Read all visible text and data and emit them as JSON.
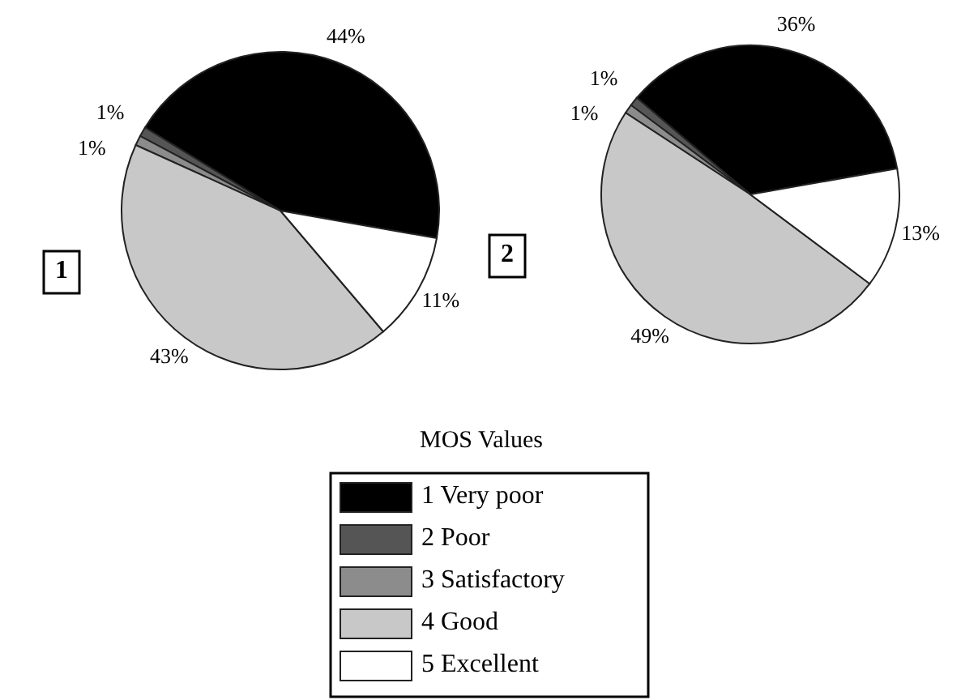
{
  "chart_data": [
    {
      "type": "pie",
      "title": "1",
      "categories": [
        "1 Very poor",
        "2 Poor",
        "3 Satisfactory",
        "4 Good",
        "5 Excellent"
      ],
      "values": [
        44,
        1,
        1,
        43,
        11
      ],
      "value_labels": [
        "44%",
        "1%",
        "1%",
        "43%",
        "11%"
      ],
      "colors": [
        "#000000",
        "#555555",
        "#8c8c8c",
        "#c8c8c8",
        "#ffffff"
      ],
      "legend": "bottom",
      "legend_title": "MOS Values"
    },
    {
      "type": "pie",
      "title": "2",
      "categories": [
        null,
        null,
        null,
        null,
        null
      ],
      "values": [
        36,
        1,
        1,
        49,
        13
      ],
      "value_labels": [
        "36%",
        "1%",
        "1%",
        "49%",
        "13%"
      ],
      "colors": [
        "#000000",
        "#555555",
        "#8c8c8c",
        "#c8c8c8",
        "#ffffff"
      ]
    }
  ]
}
